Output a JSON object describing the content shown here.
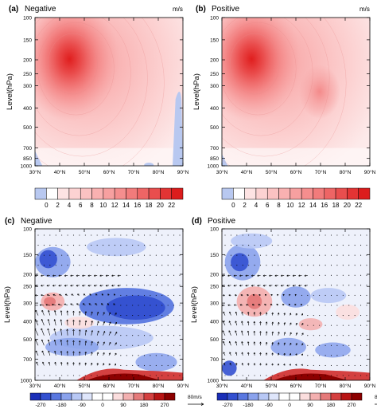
{
  "chart_data": [
    {
      "type": "heatmap",
      "panel_label": "(a)",
      "title": "Negative",
      "unit_label": "m/s",
      "ylabel": "Level(hPa)",
      "y_ticks": [
        "100",
        "150",
        "200",
        "250",
        "300",
        "400",
        "500",
        "700",
        "850",
        "1000"
      ],
      "x_ticks": [
        "30°N",
        "40°N",
        "50°N",
        "60°N",
        "70°N",
        "80°N",
        "90°N"
      ],
      "jet_core": {
        "lat": 44,
        "level_hpa": 200,
        "max": 22
      },
      "colorbar": {
        "labels": [
          "0",
          "2",
          "4",
          "6",
          "8",
          "10",
          "12",
          "14",
          "16",
          "18",
          "20",
          "22"
        ],
        "colors": [
          "#b8c8f0",
          "#ffffff",
          "#fde3e3",
          "#fcd2d2",
          "#fbc2c2",
          "#f9b1b1",
          "#f7a0a0",
          "#f58e8e",
          "#f27b7b",
          "#ee6565",
          "#e94e4e",
          "#e33434",
          "#dc1c1c"
        ]
      }
    },
    {
      "type": "heatmap",
      "panel_label": "(b)",
      "title": "Positive",
      "unit_label": "m/s",
      "ylabel": "Level(hPa)",
      "y_ticks": [
        "100",
        "150",
        "200",
        "250",
        "300",
        "400",
        "500",
        "700",
        "850",
        "1000"
      ],
      "x_ticks": [
        "30°N",
        "40°N",
        "50°N",
        "60°N",
        "70°N",
        "80°N",
        "90°N"
      ],
      "jet_core": {
        "lat": 42,
        "level_hpa": 200,
        "max": 22
      },
      "colorbar": {
        "labels": [
          "0",
          "2",
          "4",
          "6",
          "8",
          "10",
          "12",
          "14",
          "16",
          "18",
          "20",
          "22"
        ],
        "colors": [
          "#b8c8f0",
          "#ffffff",
          "#fde3e3",
          "#fcd2d2",
          "#fbc2c2",
          "#f9b1b1",
          "#f7a0a0",
          "#f58e8e",
          "#f27b7b",
          "#ee6565",
          "#e94e4e",
          "#e33434",
          "#dc1c1c"
        ]
      }
    },
    {
      "type": "heatmap",
      "panel_label": "(c)",
      "title": "Negative",
      "ylabel": "Level(hPa)",
      "y_ticks": [
        "100",
        "150",
        "200",
        "250",
        "300",
        "400",
        "500",
        "700",
        "1000"
      ],
      "x_ticks": [
        "30°N",
        "40°N",
        "50°N",
        "60°N",
        "70°N",
        "80°N",
        "90°N"
      ],
      "vector_ref_label": "80m/s",
      "colorbar": {
        "labels": [
          "-270",
          "-180",
          "-90",
          "0",
          "90",
          "180",
          "270"
        ],
        "colors": [
          "#1a2fb8",
          "#3350d0",
          "#5a78e0",
          "#8aa2ec",
          "#b8c8f5",
          "#dfe6fb",
          "#ffffff",
          "#ffffff",
          "#fbdede",
          "#f3b0b0",
          "#e57a7a",
          "#d44040",
          "#b81414",
          "#8c0000"
        ]
      }
    },
    {
      "type": "heatmap",
      "panel_label": "(d)",
      "title": "Positive",
      "ylabel": "Level(hPa)",
      "y_ticks": [
        "100",
        "150",
        "200",
        "250",
        "300",
        "400",
        "500",
        "700",
        "1000"
      ],
      "x_ticks": [
        "30°N",
        "40°N",
        "50°N",
        "60°N",
        "70°N",
        "80°N",
        "90°N"
      ],
      "vector_ref_label": "80m/s",
      "colorbar": {
        "labels": [
          "-270",
          "-180",
          "-90",
          "0",
          "90",
          "180",
          "270"
        ],
        "colors": [
          "#1a2fb8",
          "#3350d0",
          "#5a78e0",
          "#8aa2ec",
          "#b8c8f5",
          "#dfe6fb",
          "#ffffff",
          "#ffffff",
          "#fbdede",
          "#f3b0b0",
          "#e57a7a",
          "#d44040",
          "#b81414",
          "#8c0000"
        ]
      }
    }
  ]
}
